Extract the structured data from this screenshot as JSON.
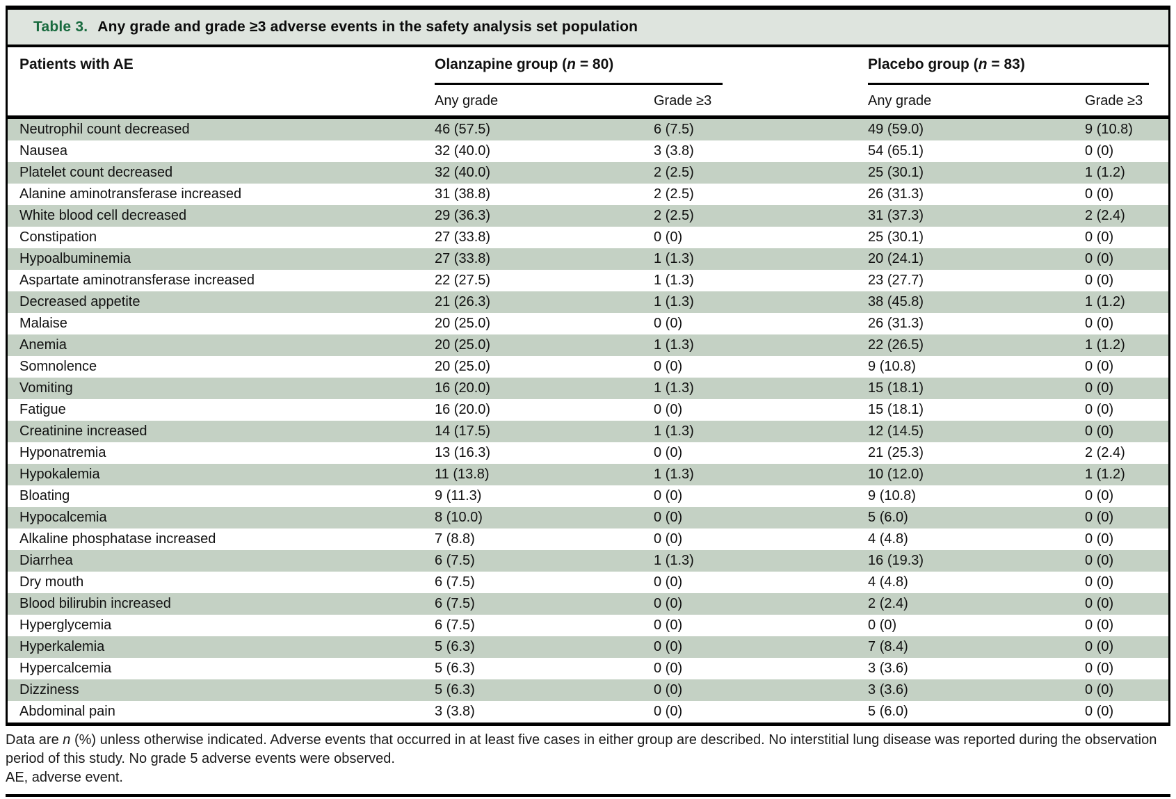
{
  "table": {
    "title_label": "Table 3.",
    "title_text": "Any grade and grade ≥3 adverse events in the safety analysis set population",
    "columns": {
      "stub": "Patients with AE",
      "groups": [
        {
          "label_parts": [
            {
              "t": "Olanzapine group (",
              "i": false
            },
            {
              "t": "n",
              "i": true
            },
            {
              "t": " = 80)",
              "i": false
            }
          ],
          "subcols": [
            "Any grade",
            "Grade ≥3"
          ]
        },
        {
          "label_parts": [
            {
              "t": "Placebo group (",
              "i": false
            },
            {
              "t": "n",
              "i": true
            },
            {
              "t": " = 83)",
              "i": false
            }
          ],
          "subcols": [
            "Any grade",
            "Grade ≥3"
          ]
        }
      ]
    },
    "rows": [
      {
        "name": "Neutrophil count decreased",
        "values": [
          "46 (57.5)",
          "6 (7.5)",
          "49 (59.0)",
          "9 (10.8)"
        ]
      },
      {
        "name": "Nausea",
        "values": [
          "32 (40.0)",
          "3 (3.8)",
          "54 (65.1)",
          "0 (0)"
        ]
      },
      {
        "name": "Platelet count decreased",
        "values": [
          "32 (40.0)",
          "2 (2.5)",
          "25 (30.1)",
          "1 (1.2)"
        ]
      },
      {
        "name": "Alanine aminotransferase increased",
        "values": [
          "31 (38.8)",
          "2 (2.5)",
          "26 (31.3)",
          "0 (0)"
        ]
      },
      {
        "name": "White blood cell decreased",
        "values": [
          "29 (36.3)",
          "2 (2.5)",
          "31 (37.3)",
          "2 (2.4)"
        ]
      },
      {
        "name": "Constipation",
        "values": [
          "27 (33.8)",
          "0 (0)",
          "25 (30.1)",
          "0 (0)"
        ]
      },
      {
        "name": "Hypoalbuminemia",
        "values": [
          "27 (33.8)",
          "1 (1.3)",
          "20 (24.1)",
          "0 (0)"
        ]
      },
      {
        "name": "Aspartate aminotransferase increased",
        "values": [
          "22 (27.5)",
          "1 (1.3)",
          "23 (27.7)",
          "0 (0)"
        ]
      },
      {
        "name": "Decreased appetite",
        "values": [
          "21 (26.3)",
          "1 (1.3)",
          "38 (45.8)",
          "1 (1.2)"
        ]
      },
      {
        "name": "Malaise",
        "values": [
          "20 (25.0)",
          "0 (0)",
          "26 (31.3)",
          "0 (0)"
        ]
      },
      {
        "name": "Anemia",
        "values": [
          "20 (25.0)",
          "1 (1.3)",
          "22 (26.5)",
          "1 (1.2)"
        ]
      },
      {
        "name": "Somnolence",
        "values": [
          "20 (25.0)",
          "0 (0)",
          "9 (10.8)",
          "0 (0)"
        ]
      },
      {
        "name": "Vomiting",
        "values": [
          "16 (20.0)",
          "1 (1.3)",
          "15 (18.1)",
          "0 (0)"
        ]
      },
      {
        "name": "Fatigue",
        "values": [
          "16 (20.0)",
          "0 (0)",
          "15 (18.1)",
          "0 (0)"
        ]
      },
      {
        "name": "Creatinine increased",
        "values": [
          "14 (17.5)",
          "1 (1.3)",
          "12 (14.5)",
          "0 (0)"
        ]
      },
      {
        "name": "Hyponatremia",
        "values": [
          "13 (16.3)",
          "0 (0)",
          "21 (25.3)",
          "2 (2.4)"
        ]
      },
      {
        "name": "Hypokalemia",
        "values": [
          "11 (13.8)",
          "1 (1.3)",
          "10 (12.0)",
          "1 (1.2)"
        ]
      },
      {
        "name": "Bloating",
        "values": [
          "9 (11.3)",
          "0 (0)",
          "9 (10.8)",
          "0 (0)"
        ]
      },
      {
        "name": "Hypocalcemia",
        "values": [
          "8 (10.0)",
          "0 (0)",
          "5 (6.0)",
          "0 (0)"
        ]
      },
      {
        "name": "Alkaline phosphatase increased",
        "values": [
          "7 (8.8)",
          "0 (0)",
          "4 (4.8)",
          "0 (0)"
        ]
      },
      {
        "name": "Diarrhea",
        "values": [
          "6 (7.5)",
          "1 (1.3)",
          "16 (19.3)",
          "0 (0)"
        ]
      },
      {
        "name": "Dry mouth",
        "values": [
          "6 (7.5)",
          "0 (0)",
          "4 (4.8)",
          "0 (0)"
        ]
      },
      {
        "name": "Blood bilirubin increased",
        "values": [
          "6 (7.5)",
          "0 (0)",
          "2 (2.4)",
          "0 (0)"
        ]
      },
      {
        "name": "Hyperglycemia",
        "values": [
          "6 (7.5)",
          "0 (0)",
          "0 (0)",
          "0 (0)"
        ]
      },
      {
        "name": "Hyperkalemia",
        "values": [
          "5 (6.3)",
          "0 (0)",
          "7 (8.4)",
          "0 (0)"
        ]
      },
      {
        "name": "Hypercalcemia",
        "values": [
          "5 (6.3)",
          "0 (0)",
          "3 (3.6)",
          "0 (0)"
        ]
      },
      {
        "name": "Dizziness",
        "values": [
          "5 (6.3)",
          "0 (0)",
          "3 (3.6)",
          "0 (0)"
        ]
      },
      {
        "name": "Abdominal pain",
        "values": [
          "3 (3.8)",
          "0 (0)",
          "5 (6.0)",
          "0 (0)"
        ]
      }
    ]
  },
  "footnotes": {
    "line1_parts": [
      {
        "t": "Data are ",
        "i": false
      },
      {
        "t": "n",
        "i": true
      },
      {
        "t": " (%) unless otherwise indicated. Adverse events that occurred in at least five cases in either group are described. No interstitial lung disease was reported during the observation period of this study. No grade 5 adverse events were observed.",
        "i": false
      }
    ],
    "line2": "AE, adverse event."
  },
  "colors": {
    "stripe": "#c4d1c4",
    "title_bar_bg": "#dee4de",
    "title_green": "#186a3e",
    "rule_black": "#000000"
  }
}
